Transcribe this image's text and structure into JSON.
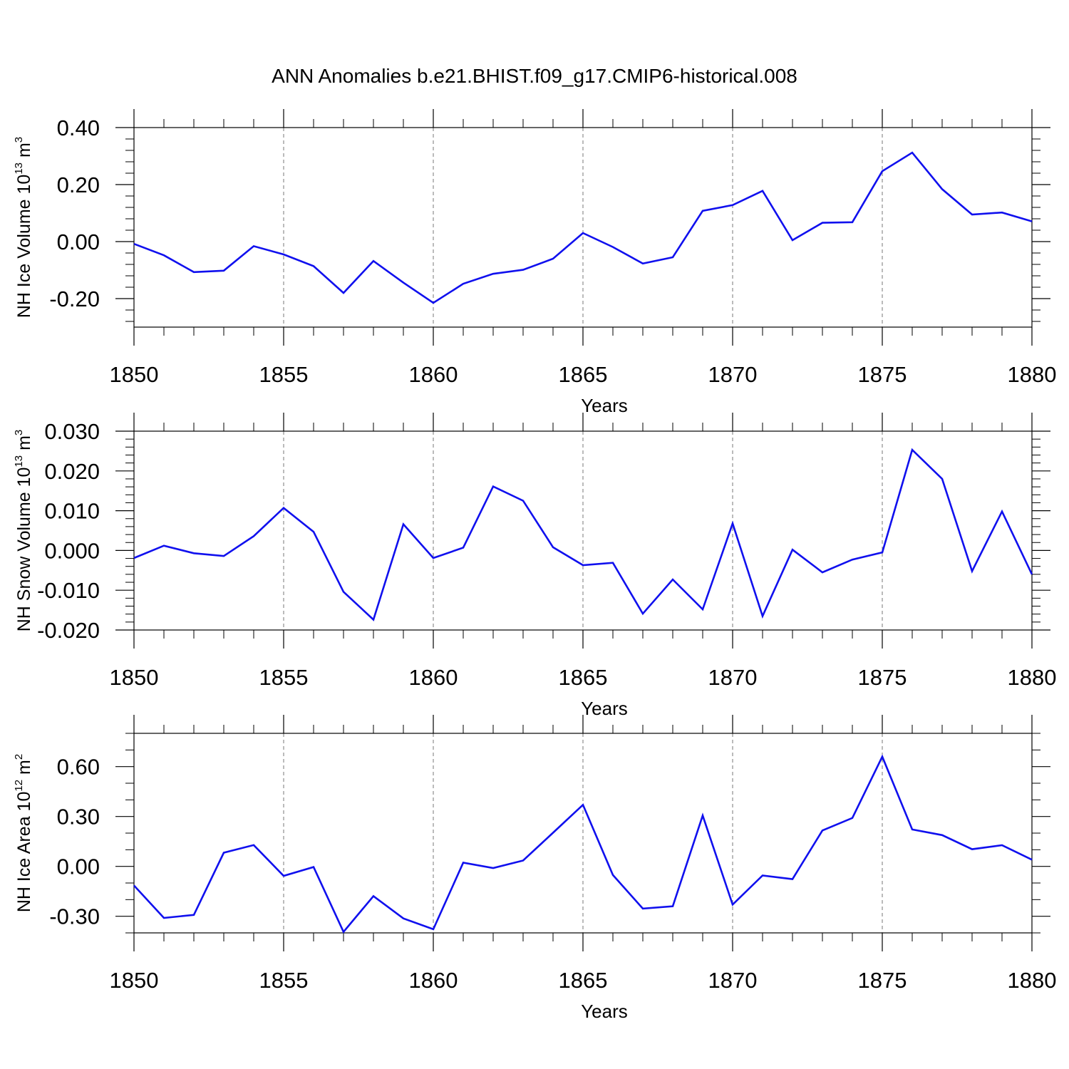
{
  "figure": {
    "title": "ANN Anomalies b.e21.BHIST.f09_g17.CMIP6-historical.008",
    "line_color": "#1010ee",
    "grid_color": "#777777",
    "axis_color": "#000000"
  },
  "chart_data": [
    {
      "type": "line",
      "name": "nh-ice-volume",
      "ylabel_main": "NH Ice Volume 10",
      "ylabel_sup": "13",
      "ylabel_unit": " m",
      "ylabel_unit_sup": "3",
      "xlabel": "Years",
      "xlim": [
        1850,
        1880
      ],
      "ylim": [
        -0.3,
        0.4
      ],
      "xticks": [
        1850,
        1855,
        1860,
        1865,
        1870,
        1875,
        1880
      ],
      "xtick_labels": [
        "1850",
        "1855",
        "1860",
        "1865",
        "1870",
        "1875",
        "1880"
      ],
      "yticks": [
        -0.2,
        0.0,
        0.2,
        0.4
      ],
      "ytick_labels": [
        "-0.20",
        "0.00",
        "0.20",
        "0.40"
      ],
      "yminor_step": 0.04,
      "x": [
        1850,
        1851,
        1852,
        1853,
        1854,
        1855,
        1856,
        1857,
        1858,
        1859,
        1860,
        1861,
        1862,
        1863,
        1864,
        1865,
        1866,
        1867,
        1868,
        1869,
        1870,
        1871,
        1872,
        1873,
        1874,
        1875,
        1876,
        1877,
        1878,
        1879,
        1880
      ],
      "series": [
        {
          "name": "NH Ice Volume",
          "values": [
            -0.008,
            -0.048,
            -0.107,
            -0.102,
            -0.016,
            -0.045,
            -0.086,
            -0.18,
            -0.068,
            -0.144,
            -0.215,
            -0.148,
            -0.113,
            -0.099,
            -0.06,
            0.03,
            -0.019,
            -0.077,
            -0.055,
            0.108,
            0.128,
            0.178,
            0.005,
            0.066,
            0.068,
            0.247,
            0.312,
            0.184,
            0.095,
            0.102,
            0.071
          ]
        }
      ]
    },
    {
      "type": "line",
      "name": "nh-snow-volume",
      "ylabel_main": "NH Snow Volume 10",
      "ylabel_sup": "13",
      "ylabel_unit": " m",
      "ylabel_unit_sup": "3",
      "xlabel": "Years",
      "xlim": [
        1850,
        1880
      ],
      "ylim": [
        -0.02,
        0.03
      ],
      "xticks": [
        1850,
        1855,
        1860,
        1865,
        1870,
        1875,
        1880
      ],
      "xtick_labels": [
        "1850",
        "1855",
        "1860",
        "1865",
        "1870",
        "1875",
        "1880"
      ],
      "yticks": [
        -0.02,
        -0.01,
        0.0,
        0.01,
        0.02,
        0.03
      ],
      "ytick_labels": [
        "-0.020",
        "-0.010",
        "0.000",
        "0.010",
        "0.020",
        "0.030"
      ],
      "yminor_step": 0.002,
      "x": [
        1850,
        1851,
        1852,
        1853,
        1854,
        1855,
        1856,
        1857,
        1858,
        1859,
        1860,
        1861,
        1862,
        1863,
        1864,
        1865,
        1866,
        1867,
        1868,
        1869,
        1870,
        1871,
        1872,
        1873,
        1874,
        1875,
        1876,
        1877,
        1878,
        1879,
        1880
      ],
      "series": [
        {
          "name": "NH Snow Volume",
          "values": [
            -0.0019,
            0.0012,
            -0.0007,
            -0.0014,
            0.0036,
            0.0107,
            0.0047,
            -0.0104,
            -0.0174,
            0.0066,
            -0.0019,
            0.0007,
            0.0161,
            0.0125,
            0.0008,
            -0.0037,
            -0.0031,
            -0.0159,
            -0.0073,
            -0.0148,
            0.0068,
            -0.0165,
            0.0002,
            -0.0055,
            -0.0023,
            -0.0005,
            0.0253,
            0.018,
            -0.0052,
            0.0098,
            -0.006
          ]
        }
      ]
    },
    {
      "type": "line",
      "name": "nh-ice-area",
      "ylabel_main": "NH Ice Area 10",
      "ylabel_sup": "12",
      "ylabel_unit": " m",
      "ylabel_unit_sup": "2",
      "xlabel": "Years",
      "xlim": [
        1850,
        1880
      ],
      "ylim": [
        -0.4,
        0.8
      ],
      "xticks": [
        1850,
        1855,
        1860,
        1865,
        1870,
        1875,
        1880
      ],
      "xtick_labels": [
        "1850",
        "1855",
        "1860",
        "1865",
        "1870",
        "1875",
        "1880"
      ],
      "yticks": [
        -0.3,
        0.0,
        0.3,
        0.6
      ],
      "ytick_labels": [
        "-0.30",
        "0.00",
        "0.30",
        "0.60"
      ],
      "yminor_step": 0.1,
      "x": [
        1850,
        1851,
        1852,
        1853,
        1854,
        1855,
        1856,
        1857,
        1858,
        1859,
        1860,
        1861,
        1862,
        1863,
        1864,
        1865,
        1866,
        1867,
        1868,
        1869,
        1870,
        1871,
        1872,
        1873,
        1874,
        1875,
        1876,
        1877,
        1878,
        1879,
        1880
      ],
      "series": [
        {
          "name": "NH Ice Area",
          "values": [
            -0.115,
            -0.31,
            -0.292,
            0.082,
            0.128,
            -0.057,
            -0.004,
            -0.394,
            -0.179,
            -0.313,
            -0.378,
            0.022,
            -0.01,
            0.035,
            0.202,
            0.37,
            -0.052,
            -0.254,
            -0.24,
            0.306,
            -0.23,
            -0.055,
            -0.077,
            0.216,
            0.291,
            0.66,
            0.222,
            0.188,
            0.103,
            0.127,
            0.04
          ]
        }
      ]
    }
  ]
}
